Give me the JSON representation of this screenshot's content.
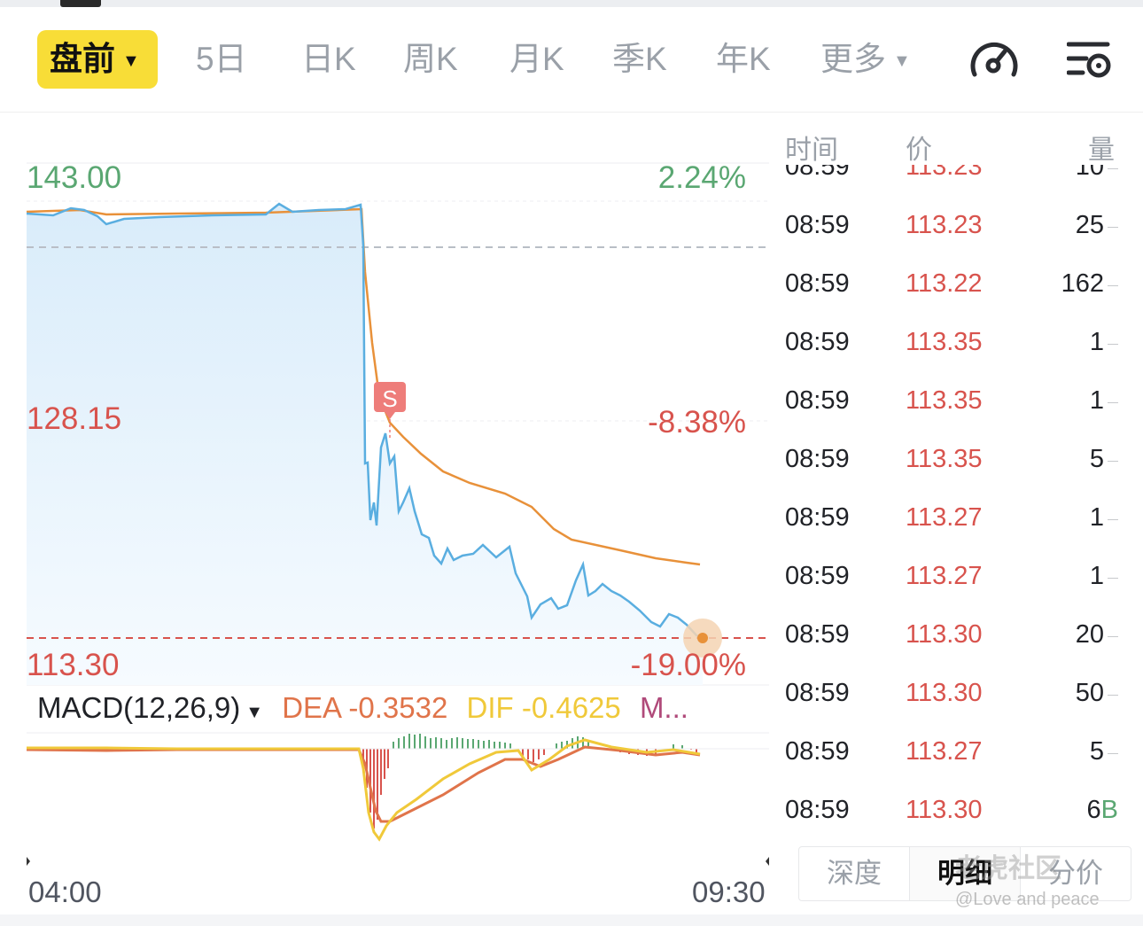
{
  "tabs": [
    {
      "label": "盘前",
      "active": true
    },
    {
      "label": "5日"
    },
    {
      "label": "日K"
    },
    {
      "label": "周K"
    },
    {
      "label": "月K"
    },
    {
      "label": "季K"
    },
    {
      "label": "年K"
    },
    {
      "label": "更多"
    }
  ],
  "icons": {
    "gauge": "speedometer-icon",
    "settings": "chart-settings-icon",
    "caret": "caret-down-icon"
  },
  "colors": {
    "accent_yellow": "#f8dd37",
    "up_green": "#5aa772",
    "down_red": "#d8534d",
    "price_line": "#5aaee0",
    "avg_line": "#e8913a",
    "dif_line": "#f0c93a",
    "dea_line": "#e0744a"
  },
  "price_axis": {
    "top_price": "143.00",
    "top_pct": "2.24%",
    "mid_price": "128.15",
    "mid_pct": "-8.38%",
    "bottom_price": "113.30",
    "bottom_pct": "-19.00%"
  },
  "signal_marker": "S",
  "macd": {
    "label": "MACD(12,26,9)",
    "dea": "DEA -0.3532",
    "dif": "DIF -0.4625",
    "more": "M..."
  },
  "time_axis": {
    "start": "04:00",
    "end": "09:30"
  },
  "ticks": {
    "headers": {
      "time": "时间",
      "price": "价",
      "volume": "量"
    },
    "partial_row": {
      "time": "08:59",
      "price": "113.23",
      "volume": "10"
    },
    "rows": [
      {
        "time": "08:59",
        "price": "113.23",
        "volume": "25"
      },
      {
        "time": "08:59",
        "price": "113.22",
        "volume": "162"
      },
      {
        "time": "08:59",
        "price": "113.35",
        "volume": "1"
      },
      {
        "time": "08:59",
        "price": "113.35",
        "volume": "1"
      },
      {
        "time": "08:59",
        "price": "113.35",
        "volume": "5"
      },
      {
        "time": "08:59",
        "price": "113.27",
        "volume": "1"
      },
      {
        "time": "08:59",
        "price": "113.27",
        "volume": "1"
      },
      {
        "time": "08:59",
        "price": "113.30",
        "volume": "20"
      },
      {
        "time": "08:59",
        "price": "113.30",
        "volume": "50"
      },
      {
        "time": "08:59",
        "price": "113.27",
        "volume": "5"
      },
      {
        "time": "08:59",
        "price": "113.30",
        "volume": "6",
        "flag": "B"
      }
    ]
  },
  "subtabs": [
    "深度",
    "明细",
    "分价"
  ],
  "watermark": {
    "site": "老虎社区",
    "user": "@Love and peace"
  }
}
